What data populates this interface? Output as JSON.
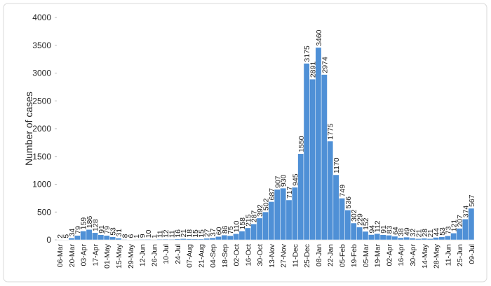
{
  "chart_data": {
    "type": "bar",
    "y_label": "Number of cases",
    "color": "#4f90d6",
    "categories": [
      "06-Mar",
      null,
      "20-Mar",
      null,
      "03-Apr",
      null,
      "17-Apr",
      null,
      "01-May",
      null,
      "15-May",
      null,
      "29-May",
      null,
      "12-Jun",
      null,
      "26-Jun",
      null,
      "10-Jul",
      null,
      "24-Jul",
      null,
      "07-Aug",
      null,
      "21-Aug",
      null,
      "04-Sep",
      null,
      "18-Sep",
      null,
      "02-Oct",
      null,
      "16-Oct",
      null,
      "30-Oct",
      null,
      "13-Nov",
      null,
      "27-Nov",
      null,
      "11-Dec",
      null,
      "25-Dec",
      null,
      "08-Jan",
      null,
      "22-Jan",
      null,
      "05-Feb",
      null,
      "19-Feb",
      null,
      "05-Mar",
      null,
      "19-Mar",
      null,
      "02-Apr",
      null,
      "16-Apr",
      null,
      "30-Apr",
      null,
      "14-May",
      null,
      "28-May",
      null,
      "11-Jun",
      null,
      "25-Jun",
      null,
      "09-Jul"
    ],
    "values": [
      2,
      5,
      34,
      79,
      159,
      186,
      128,
      91,
      79,
      53,
      31,
      8,
      6,
      1,
      9,
      10,
      1,
      11,
      12,
      11,
      16,
      21,
      18,
      15,
      15,
      27,
      37,
      60,
      86,
      75,
      110,
      158,
      215,
      287,
      392,
      502,
      687,
      907,
      930,
      717,
      945,
      1550,
      3175,
      2891,
      3460,
      2974,
      1775,
      1170,
      749,
      536,
      302,
      229,
      152,
      94,
      112,
      91,
      83,
      64,
      38,
      49,
      32,
      21,
      28,
      21,
      44,
      53,
      73,
      121,
      207,
      374,
      567
    ],
    "ylim": [
      0,
      4000
    ],
    "yticks": [
      0,
      500,
      1000,
      1500,
      2000,
      2500,
      3000,
      3500,
      4000
    ]
  }
}
